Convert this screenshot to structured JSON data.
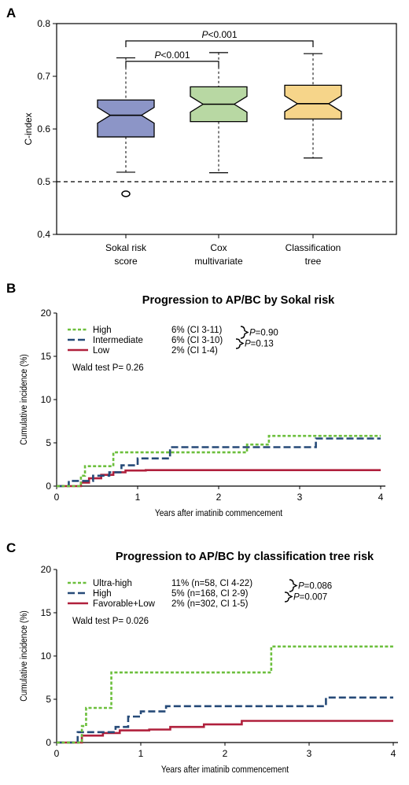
{
  "chart_data": [
    {
      "panel": "A",
      "type": "box",
      "title": "",
      "ylabel": "C-index",
      "ylim": [
        0.4,
        0.8
      ],
      "yticks": [
        "0.4",
        "0.5",
        "0.6",
        "0.7",
        "0.8"
      ],
      "reference_line": 0.5,
      "categories": [
        {
          "lines": [
            "Sokal risk",
            "score"
          ]
        },
        {
          "lines": [
            "Cox",
            "multivariate"
          ]
        },
        {
          "lines": [
            "Classification",
            "tree"
          ]
        }
      ],
      "boxes": [
        {
          "min": 0.518,
          "q1": 0.585,
          "median": 0.626,
          "q3": 0.655,
          "max": 0.735,
          "notch_low": 0.611,
          "notch_high": 0.641,
          "outliers": [
            0.477
          ],
          "color": "#8c95c7"
        },
        {
          "min": 0.517,
          "q1": 0.614,
          "median": 0.647,
          "q3": 0.68,
          "max": 0.745,
          "notch_low": 0.632,
          "notch_high": 0.662,
          "outliers": [],
          "color": "#b8d8a3"
        },
        {
          "min": 0.545,
          "q1": 0.619,
          "median": 0.648,
          "q3": 0.683,
          "max": 0.743,
          "notch_low": 0.633,
          "notch_high": 0.663,
          "outliers": [],
          "color": "#f6d58a"
        }
      ],
      "brackets": [
        {
          "from": 0,
          "to": 1,
          "label": "P<0.001"
        },
        {
          "from": 0,
          "to": 2,
          "label": "P<0.001"
        }
      ]
    },
    {
      "panel": "B",
      "type": "line",
      "step": true,
      "title": "Progression to AP/BC by Sokal risk",
      "xlabel": "Years after imatinib commencement",
      "ylabel": "Cumulative incidence (%)",
      "xlim": [
        0,
        4
      ],
      "ylim": [
        0,
        20
      ],
      "xticks": [
        "0",
        "1",
        "2",
        "3",
        "4"
      ],
      "yticks": [
        "0",
        "5",
        "10",
        "15",
        "20"
      ],
      "series": [
        {
          "name": "High",
          "stat": "6% (CI 3-11)",
          "color": "#6cbf3c",
          "dash": "dotted",
          "x": [
            0,
            0.3,
            0.35,
            0.6,
            0.7,
            1.4,
            2.35,
            2.62,
            4.0
          ],
          "y": [
            0,
            1.2,
            2.3,
            2.3,
            3.9,
            3.9,
            4.8,
            5.8,
            5.8
          ]
        },
        {
          "name": "Intermediate",
          "stat": "6% (CI 3-10)",
          "color": "#264a78",
          "dash": "dashed",
          "x": [
            0,
            0.15,
            0.3,
            0.45,
            0.65,
            0.8,
            1.0,
            1.1,
            1.4,
            2.35,
            3.2,
            4.0
          ],
          "y": [
            0,
            0.6,
            0.6,
            1.2,
            1.6,
            2.4,
            3.2,
            3.2,
            4.5,
            4.5,
            5.5,
            5.5
          ]
        },
        {
          "name": "Low",
          "stat": "2% (CI 1-4)",
          "color": "#b0203c",
          "dash": "solid",
          "x": [
            0,
            0.3,
            0.4,
            0.55,
            0.7,
            0.85,
            1.1,
            4.0
          ],
          "y": [
            0,
            0.4,
            0.9,
            1.3,
            1.6,
            1.8,
            1.85,
            1.85
          ]
        }
      ],
      "pair_tests": [
        "P=0.90",
        "P=0.13"
      ],
      "wald": "Wald test P= 0.26"
    },
    {
      "panel": "C",
      "type": "line",
      "step": true,
      "title": "Progression to AP/BC by classification tree risk",
      "xlabel": "Years after imatinib commencement",
      "ylabel": "Cumulative incidence (%)",
      "xlim": [
        0,
        4
      ],
      "ylim": [
        0,
        20
      ],
      "xticks": [
        "0",
        "1",
        "2",
        "3",
        "4"
      ],
      "yticks": [
        "0",
        "5",
        "10",
        "15",
        "20"
      ],
      "series": [
        {
          "name": "Ultra-high",
          "stat": "11% (n=58, CI 4-22)",
          "color": "#6cbf3c",
          "dash": "dotted",
          "x": [
            0,
            0.3,
            0.35,
            0.6,
            0.65,
            2.5,
            2.55,
            4.0
          ],
          "y": [
            0,
            1.9,
            4.0,
            4.0,
            8.1,
            8.1,
            11.1,
            11.1
          ]
        },
        {
          "name": "High",
          "stat": "5% (n=168, CI 2-9)",
          "color": "#264a78",
          "dash": "dashed",
          "x": [
            0,
            0.25,
            0.5,
            0.7,
            0.85,
            1.0,
            1.3,
            3.2,
            4.0
          ],
          "y": [
            0,
            1.2,
            1.2,
            1.8,
            3.0,
            3.6,
            4.2,
            5.2,
            5.2
          ]
        },
        {
          "name": "Favorable+Low",
          "stat": "2% (n=302, CI 1-5)",
          "color": "#b0203c",
          "dash": "solid",
          "x": [
            0,
            0.3,
            0.55,
            0.75,
            1.1,
            1.35,
            1.75,
            2.2,
            4.0
          ],
          "y": [
            0,
            0.8,
            1.1,
            1.4,
            1.5,
            1.8,
            2.1,
            2.5,
            2.5
          ]
        }
      ],
      "pair_tests": [
        "P=0.086",
        "P=0.007"
      ],
      "wald": "Wald test P= 0.026"
    }
  ]
}
